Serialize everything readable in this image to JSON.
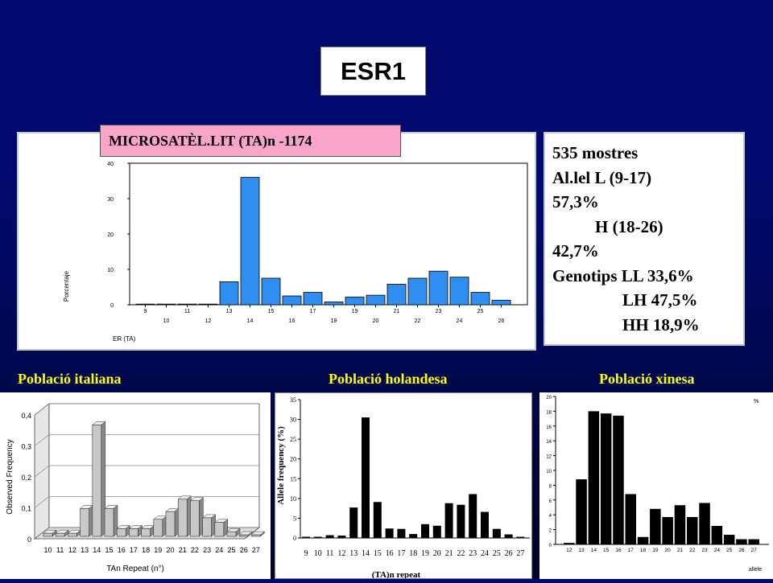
{
  "title": "ESR1",
  "main_chart_label": "MICROSATÈL.LIT (TA)n -1174",
  "info": {
    "lines": [
      "535 mostres",
      "Al.lel L (9-17)",
      "57,3%",
      "H (18-26)",
      "42,7%",
      "Genotips LL 33,6%",
      "LH 47,5%",
      "HH 18,9%"
    ]
  },
  "populations": {
    "italiana": "Població italiana",
    "holandesa": "Població holandesa",
    "xinesa": "Població xinesa"
  },
  "colors": {
    "background": "#000a6e",
    "bar_main": "#2e8ff0",
    "pink": "#f9a5c9",
    "yellow": "#ffff00"
  },
  "chart_data": [
    {
      "type": "bar",
      "title": "",
      "xlabel": "ER (TA)",
      "ylabel": "Porcentaje",
      "ylim": [
        0,
        40
      ],
      "yticks": [
        "0",
        "10",
        "20",
        "30",
        "40"
      ],
      "categories": [
        "9",
        "10",
        "11",
        "12",
        "13",
        "14",
        "15",
        "16",
        "17",
        "18",
        "19",
        "20",
        "21",
        "22",
        "23",
        "24",
        "25",
        "26"
      ],
      "values": [
        0.2,
        0.2,
        0.2,
        0.2,
        6.5,
        36,
        7.5,
        2.5,
        3.5,
        0.8,
        2.2,
        2.7,
        5.8,
        7.5,
        9.5,
        7.8,
        3.5,
        1.3
      ]
    },
    {
      "type": "bar",
      "title": "",
      "xlabel": "TAn Repeat (n°)",
      "ylabel": "Observed Frequency",
      "ylim": [
        0,
        0.4
      ],
      "yticks": [
        "0",
        "0,1",
        "0,2",
        "0,3",
        "0,4"
      ],
      "categories": [
        "10",
        "11",
        "12",
        "13",
        "14",
        "15",
        "16",
        "17",
        "18",
        "19",
        "20",
        "21",
        "22",
        "23",
        "24",
        "25",
        "26",
        "27"
      ],
      "values": [
        0.01,
        0.01,
        0.01,
        0.09,
        0.36,
        0.09,
        0.025,
        0.025,
        0.025,
        0.055,
        0.08,
        0.12,
        0.115,
        0.06,
        0.045,
        0.015,
        0.005,
        0.005
      ]
    },
    {
      "type": "bar",
      "title": "",
      "xlabel": "(TA)n repeat",
      "ylabel": "Allele frequency (%)",
      "ylim": [
        0,
        35
      ],
      "yticks": [
        "0",
        "5",
        "10",
        "15",
        "20",
        "25",
        "30",
        "35"
      ],
      "categories": [
        "9",
        "10",
        "11",
        "12",
        "13",
        "14",
        "15",
        "16",
        "17",
        "18",
        "19",
        "20",
        "21",
        "22",
        "23",
        "24",
        "25",
        "26",
        "27"
      ],
      "values": [
        0.3,
        0.3,
        0.7,
        0.6,
        7.7,
        30.5,
        9.1,
        2.4,
        2.3,
        1.0,
        3.5,
        3.1,
        8.8,
        8.4,
        11.1,
        6.6,
        2.3,
        0.9,
        0.3
      ]
    },
    {
      "type": "bar",
      "title": "",
      "xlabel": "allele",
      "ylabel": "%",
      "ylim": [
        0,
        20
      ],
      "yticks": [
        "0",
        "2",
        "4",
        "6",
        "8",
        "10",
        "12",
        "14",
        "16",
        "18",
        "20"
      ],
      "categories": [
        "12",
        "13",
        "14",
        "15",
        "16",
        "17",
        "18",
        "19",
        "20",
        "21",
        "22",
        "23",
        "24",
        "25",
        "26",
        "27"
      ],
      "values": [
        0.2,
        8.8,
        18.0,
        17.7,
        17.4,
        6.8,
        1.0,
        4.8,
        3.7,
        5.3,
        3.7,
        5.6,
        2.5,
        1.3,
        0.7,
        0.7
      ]
    }
  ]
}
